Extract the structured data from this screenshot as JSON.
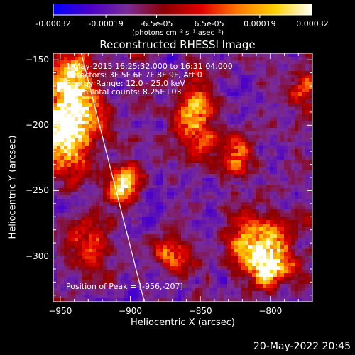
{
  "colorbar": {
    "tick_labels": [
      "-0.00032",
      "-0.00019",
      "-6.5e-05",
      "6.5e-05",
      "0.00019",
      "0.00032"
    ],
    "tick_values": [
      -0.00032,
      -0.00019,
      -6.5e-05,
      6.5e-05,
      0.00019,
      0.00032
    ],
    "range": [
      -0.00032,
      0.00032
    ],
    "unit_label": "(photons cm⁻² s⁻¹ asec⁻²)",
    "colormap": [
      "#0000ff",
      "#4b00c8",
      "#7a2b96",
      "#8c0000",
      "#e10000",
      "#ff7a00",
      "#ffd200",
      "#ffffff"
    ]
  },
  "chart_data": {
    "type": "heatmap",
    "title": "Reconstructed RHESSI Image",
    "xlabel": "Heliocentric X (arcsec)",
    "ylabel": "Heliocentric Y (arcsec)",
    "xlim": [
      -955,
      -770
    ],
    "ylim": [
      -335,
      -145
    ],
    "x_ticks": [
      -950,
      -900,
      -850,
      -800
    ],
    "x_tick_labels": [
      "−950",
      "−900",
      "−850",
      "−800"
    ],
    "y_ticks": [
      -150,
      -200,
      -250,
      -300
    ],
    "y_tick_labels": [
      "−150",
      "−200",
      "−250",
      "−300"
    ],
    "limb_line": [
      [
        -935,
        -145
      ],
      [
        -890,
        -335
      ]
    ],
    "bright_sources": [
      {
        "x": -945,
        "y": -205,
        "intensity": 1.0,
        "sx": 14,
        "sy": 22
      },
      {
        "x": -940,
        "y": -170,
        "intensity": 0.8,
        "sx": 10,
        "sy": 18
      },
      {
        "x": -905,
        "y": -245,
        "intensity": 0.75,
        "sx": 8,
        "sy": 10
      },
      {
        "x": -855,
        "y": -195,
        "intensity": 0.7,
        "sx": 10,
        "sy": 18
      },
      {
        "x": -825,
        "y": -225,
        "intensity": 0.6,
        "sx": 8,
        "sy": 10
      },
      {
        "x": -808,
        "y": -290,
        "intensity": 0.95,
        "sx": 14,
        "sy": 12
      },
      {
        "x": -800,
        "y": -310,
        "intensity": 0.8,
        "sx": 12,
        "sy": 10
      },
      {
        "x": -870,
        "y": -300,
        "intensity": 0.55,
        "sx": 8,
        "sy": 8
      },
      {
        "x": -930,
        "y": -290,
        "intensity": 0.5,
        "sx": 10,
        "sy": 14
      },
      {
        "x": -775,
        "y": -175,
        "intensity": 0.5,
        "sx": 8,
        "sy": 10
      }
    ],
    "peak": [
      -956,
      -207
    ]
  },
  "info": {
    "line1": "1-May-2015 16:25:32.000 to 16:31:04.000",
    "line2": "Detectors: 3F 5F 6F 7F 8F 9F, Att 0",
    "line3": "Energy Range: 12.0 - 25.0 keV",
    "line4": "Clean    Total counts: 8.25E+03",
    "peak_text": "Position of Peak = [-956,-207]"
  },
  "footer": {
    "date": "20-May-2022 20:45"
  }
}
